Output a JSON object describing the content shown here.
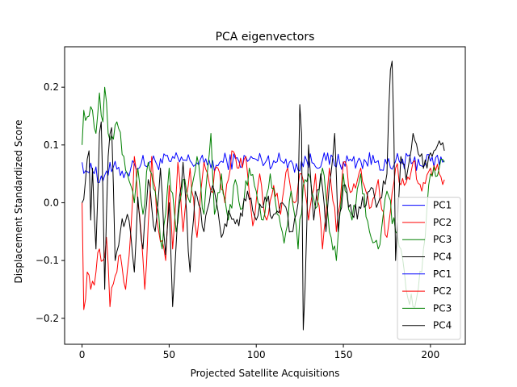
{
  "chart_data": {
    "type": "line",
    "title": "PCA eigenvectors",
    "xlabel": "Projected Satellite Acquisitions",
    "ylabel": "Displacement Standardized Score",
    "xlim": [
      -10,
      220
    ],
    "ylim": [
      -0.245,
      0.27
    ],
    "xticks": [
      0,
      50,
      100,
      150,
      200
    ],
    "xtick_labels": [
      "0",
      "50",
      "100",
      "150",
      "200"
    ],
    "yticks": [
      -0.2,
      -0.1,
      0.0,
      0.1,
      0.2
    ],
    "ytick_labels": [
      "−0.2",
      "−0.1",
      "0.0",
      "0.1",
      "0.2"
    ],
    "grid": false,
    "legend": "lower-right",
    "series": [
      {
        "name": "PC1",
        "color": "#0000ff",
        "keypoints": [
          [
            0,
            0.07
          ],
          [
            4,
            0.052
          ],
          [
            8,
            0.062
          ],
          [
            10,
            0.035
          ],
          [
            14,
            0.055
          ],
          [
            20,
            0.058
          ],
          [
            26,
            0.052
          ],
          [
            30,
            0.068
          ],
          [
            40,
            0.07
          ],
          [
            50,
            0.072
          ],
          [
            60,
            0.073
          ],
          [
            70,
            0.068
          ],
          [
            75,
            0.073
          ],
          [
            76,
            0.055
          ],
          [
            80,
            0.072
          ],
          [
            90,
            0.072
          ],
          [
            100,
            0.075
          ],
          [
            110,
            0.073
          ],
          [
            120,
            0.073
          ],
          [
            125,
            0.055
          ],
          [
            126,
            0.072
          ],
          [
            140,
            0.073
          ],
          [
            150,
            0.071
          ],
          [
            160,
            0.072
          ],
          [
            170,
            0.073
          ],
          [
            178,
            0.058
          ],
          [
            180,
            0.072
          ],
          [
            190,
            0.07
          ],
          [
            200,
            0.072
          ],
          [
            208,
            0.073
          ]
        ]
      },
      {
        "name": "PC2",
        "color": "#ff0000",
        "keypoints": [
          [
            0,
            0.0
          ],
          [
            1,
            -0.185
          ],
          [
            3,
            -0.12
          ],
          [
            5,
            -0.15
          ],
          [
            8,
            -0.12
          ],
          [
            10,
            -0.08
          ],
          [
            12,
            -0.1
          ],
          [
            14,
            -0.06
          ],
          [
            16,
            -0.18
          ],
          [
            18,
            -0.14
          ],
          [
            20,
            -0.12
          ],
          [
            22,
            -0.09
          ],
          [
            25,
            -0.15
          ],
          [
            28,
            -0.05
          ],
          [
            30,
            0.08
          ],
          [
            33,
            -0.02
          ],
          [
            36,
            -0.15
          ],
          [
            40,
            0.08
          ],
          [
            44,
            -0.05
          ],
          [
            48,
            -0.1
          ],
          [
            50,
            0.03
          ],
          [
            52,
            -0.08
          ],
          [
            55,
            0.07
          ],
          [
            58,
            -0.05
          ],
          [
            62,
            0.06
          ],
          [
            66,
            -0.06
          ],
          [
            70,
            0.07
          ],
          [
            74,
            0.02
          ],
          [
            78,
            0.06
          ],
          [
            82,
            0.0
          ],
          [
            86,
            0.09
          ],
          [
            90,
            0.06
          ],
          [
            94,
            0.08
          ],
          [
            98,
            -0.04
          ],
          [
            102,
            0.05
          ],
          [
            106,
            -0.03
          ],
          [
            110,
            0.03
          ],
          [
            114,
            -0.02
          ],
          [
            118,
            0.06
          ],
          [
            122,
            0.0
          ],
          [
            126,
            0.05
          ],
          [
            130,
            -0.03
          ],
          [
            134,
            0.05
          ],
          [
            138,
            -0.08
          ],
          [
            142,
            0.06
          ],
          [
            146,
            -0.05
          ],
          [
            150,
            0.07
          ],
          [
            155,
            0.02
          ],
          [
            160,
            0.06
          ],
          [
            165,
            -0.01
          ],
          [
            170,
            0.04
          ],
          [
            175,
            -0.06
          ],
          [
            180,
            0.06
          ],
          [
            185,
            0.03
          ],
          [
            190,
            0.07
          ],
          [
            195,
            0.02
          ],
          [
            200,
            0.06
          ],
          [
            205,
            0.05
          ],
          [
            208,
            0.04
          ]
        ]
      },
      {
        "name": "PC3",
        "color": "#008000",
        "keypoints": [
          [
            0,
            0.1
          ],
          [
            1,
            0.16
          ],
          [
            4,
            0.15
          ],
          [
            6,
            0.16
          ],
          [
            8,
            0.12
          ],
          [
            10,
            0.19
          ],
          [
            12,
            0.14
          ],
          [
            13,
            0.2
          ],
          [
            15,
            0.12
          ],
          [
            18,
            0.11
          ],
          [
            20,
            0.14
          ],
          [
            24,
            0.08
          ],
          [
            26,
            0.05
          ],
          [
            28,
            0.03
          ],
          [
            30,
            0.0
          ],
          [
            32,
            0.06
          ],
          [
            35,
            -0.02
          ],
          [
            38,
            0.07
          ],
          [
            42,
            0.02
          ],
          [
            46,
            -0.08
          ],
          [
            50,
            0.06
          ],
          [
            54,
            -0.05
          ],
          [
            58,
            0.04
          ],
          [
            62,
            0.0
          ],
          [
            66,
            0.08
          ],
          [
            70,
            -0.02
          ],
          [
            74,
            0.12
          ],
          [
            76,
            -0.02
          ],
          [
            80,
            0.05
          ],
          [
            84,
            -0.03
          ],
          [
            88,
            0.04
          ],
          [
            92,
            -0.01
          ],
          [
            96,
            0.06
          ],
          [
            100,
            0.02
          ],
          [
            104,
            -0.03
          ],
          [
            108,
            0.05
          ],
          [
            112,
            -0.02
          ],
          [
            116,
            -0.07
          ],
          [
            120,
            0.02
          ],
          [
            124,
            -0.08
          ],
          [
            127,
            0.03
          ],
          [
            130,
            0.05
          ],
          [
            134,
            -0.01
          ],
          [
            138,
            0.06
          ],
          [
            142,
            -0.05
          ],
          [
            146,
            -0.1
          ],
          [
            150,
            0.05
          ],
          [
            155,
            -0.03
          ],
          [
            160,
            0.05
          ],
          [
            165,
            -0.05
          ],
          [
            170,
            -0.08
          ],
          [
            175,
            0.02
          ],
          [
            180,
            -0.05
          ],
          [
            183,
            -0.08
          ],
          [
            186,
            -0.15
          ],
          [
            190,
            -0.18
          ],
          [
            195,
            -0.12
          ],
          [
            200,
            0.05
          ],
          [
            205,
            0.06
          ],
          [
            208,
            0.07
          ]
        ]
      },
      {
        "name": "PC4",
        "color": "#000000",
        "keypoints": [
          [
            0,
            0.0
          ],
          [
            2,
            0.04
          ],
          [
            4,
            0.09
          ],
          [
            5,
            -0.03
          ],
          [
            6,
            0.06
          ],
          [
            8,
            -0.08
          ],
          [
            10,
            0.12
          ],
          [
            11,
            0.14
          ],
          [
            12,
            0.02
          ],
          [
            13,
            -0.15
          ],
          [
            15,
            0.08
          ],
          [
            17,
            0.13
          ],
          [
            19,
            -0.1
          ],
          [
            22,
            -0.05
          ],
          [
            26,
            -0.02
          ],
          [
            30,
            -0.12
          ],
          [
            32,
            0.01
          ],
          [
            35,
            -0.08
          ],
          [
            38,
            0.04
          ],
          [
            42,
            -0.05
          ],
          [
            45,
            0.06
          ],
          [
            48,
            -0.09
          ],
          [
            50,
            0.0
          ],
          [
            52,
            -0.18
          ],
          [
            55,
            -0.02
          ],
          [
            58,
            0.07
          ],
          [
            62,
            -0.12
          ],
          [
            65,
            0.02
          ],
          [
            70,
            -0.05
          ],
          [
            75,
            0.03
          ],
          [
            80,
            -0.06
          ],
          [
            85,
            -0.02
          ],
          [
            90,
            -0.04
          ],
          [
            95,
            0.02
          ],
          [
            100,
            -0.03
          ],
          [
            105,
            0.01
          ],
          [
            110,
            -0.02
          ],
          [
            115,
            0.0
          ],
          [
            120,
            -0.05
          ],
          [
            124,
            0.0
          ],
          [
            125,
            0.17
          ],
          [
            126,
            0.12
          ],
          [
            127,
            -0.22
          ],
          [
            128,
            -0.15
          ],
          [
            130,
            0.1
          ],
          [
            133,
            -0.03
          ],
          [
            137,
            0.05
          ],
          [
            140,
            -0.05
          ],
          [
            145,
            0.12
          ],
          [
            147,
            -0.05
          ],
          [
            150,
            0.03
          ],
          [
            155,
            -0.02
          ],
          [
            160,
            -0.01
          ],
          [
            165,
            0.02
          ],
          [
            170,
            0.0
          ],
          [
            175,
            0.05
          ],
          [
            177,
            0.23
          ],
          [
            178,
            0.245
          ],
          [
            179,
            0.12
          ],
          [
            180,
            -0.1
          ],
          [
            183,
            0.08
          ],
          [
            186,
            0.04
          ],
          [
            190,
            0.12
          ],
          [
            194,
            0.08
          ],
          [
            198,
            0.06
          ],
          [
            202,
            0.09
          ],
          [
            206,
            0.1
          ],
          [
            208,
            0.09
          ]
        ]
      }
    ],
    "legend_entries": [
      {
        "name": "PC1",
        "color": "#0000ff"
      },
      {
        "name": "PC2",
        "color": "#ff0000"
      },
      {
        "name": "PC3",
        "color": "#008000"
      },
      {
        "name": "PC4",
        "color": "#000000"
      },
      {
        "name": "PC1",
        "color": "#0000ff"
      },
      {
        "name": "PC2",
        "color": "#ff0000"
      },
      {
        "name": "PC3",
        "color": "#008000"
      },
      {
        "name": "PC4",
        "color": "#000000"
      }
    ]
  }
}
